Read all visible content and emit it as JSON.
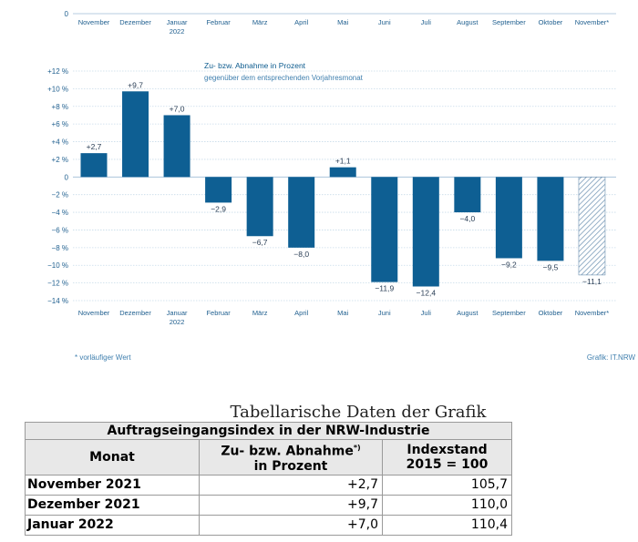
{
  "chart_data": {
    "type": "bar",
    "title": "Zu- bzw. Abnahme in Prozent",
    "subtitle": "gegenüber dem entsprechenden Vorjahresmonat",
    "categories": [
      "November",
      "Dezember",
      "Januar\n2022",
      "Februar",
      "März",
      "April",
      "Mai",
      "Juni",
      "Juli",
      "August",
      "September",
      "Oktober",
      "November*"
    ],
    "values": [
      2.7,
      9.7,
      7.0,
      -2.9,
      -6.7,
      -8.0,
      1.1,
      -11.9,
      -12.4,
      -4.0,
      -9.2,
      -9.5,
      -11.1
    ],
    "data_labels": [
      "+2,7",
      "+9,7",
      "+7,0",
      "−2,9",
      "−6,7",
      "−8,0",
      "+1,1",
      "−11,9",
      "−12,4",
      "−4,0",
      "−9,2",
      "−9,5",
      "−11,1"
    ],
    "provisional": [
      false,
      false,
      false,
      false,
      false,
      false,
      false,
      false,
      false,
      false,
      false,
      false,
      true
    ],
    "ylim": [
      -14,
      12
    ],
    "yticks": [
      12,
      10,
      8,
      6,
      4,
      2,
      0,
      -2,
      -4,
      -6,
      -8,
      -10,
      -12,
      -14
    ],
    "ytick_labels": [
      "+12 %",
      "+10 %",
      "+8 %",
      "+6 %",
      "+4 %",
      "+2 %",
      "0",
      "−2 %",
      "−4 %",
      "−6 %",
      "−8 %",
      "−10 %",
      "−12 %",
      "−14 %"
    ],
    "top_axis_zero_label": "0",
    "colors": {
      "bar": "#0e5f93",
      "provisional_hatch": "#6a8fb0",
      "text": "#1f5f8f",
      "grid": "#c8dbe9"
    }
  },
  "notes": {
    "footnote": "* vorläufiger Wert",
    "source": "Grafik: IT.NRW"
  },
  "table": {
    "caption": "Tabellarische Daten der Grafik",
    "heading": "Auftragseingangsindex in der NRW-Industrie",
    "col_month": "Monat",
    "col_change": "Zu- bzw. Abnahme",
    "col_change_sup": "*)",
    "col_change_2": "in Prozent",
    "col_index": "Indexstand",
    "col_index_2": "2015 = 100",
    "rows": [
      {
        "month": "November 2021",
        "change": "+2,7",
        "index": "105,7"
      },
      {
        "month": "Dezember 2021",
        "change": "+9,7",
        "index": "110,0"
      },
      {
        "month": "Januar 2022",
        "change": "+7,0",
        "index": "110,4"
      }
    ]
  }
}
